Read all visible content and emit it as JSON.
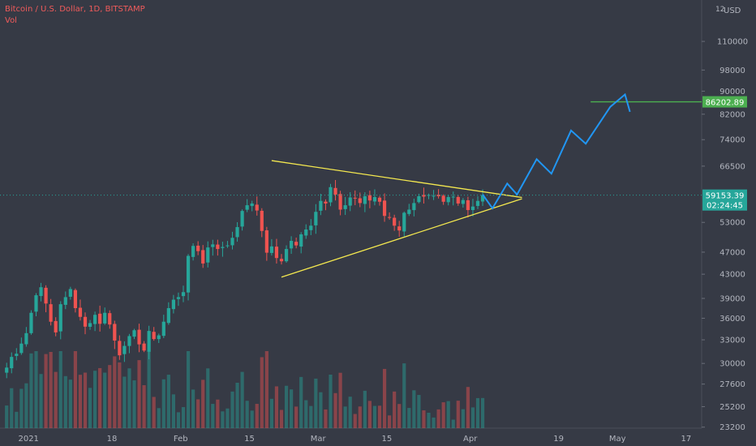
{
  "header": {
    "symbol_line": "Bitcoin / U.S. Dollar, 1D, BITSTAMP",
    "volume_label": "Vol"
  },
  "price_axis": {
    "top_label": "12",
    "currency": "USD",
    "tick_labels": [
      "110000",
      "98000",
      "90000",
      "82000",
      "74000",
      "66500",
      "53000",
      "47000",
      "43000",
      "39000",
      "36000",
      "33000",
      "30000",
      "27600",
      "25200",
      "23200"
    ]
  },
  "time_axis": {
    "tick_labels": [
      "2021",
      "18",
      "Feb",
      "15",
      "Mar",
      "15",
      "Apr",
      "19",
      "May",
      "17"
    ]
  },
  "badges": {
    "target_price": "86202.89",
    "current_price": "59153.39",
    "countdown": "02:24:45"
  },
  "colors": {
    "background": "#363a45",
    "up": "#26a69a",
    "down": "#ef5350",
    "triangle": "#f5e94f",
    "projection": "#2196f3",
    "target": "#4caf50",
    "current": "#26a69a",
    "axis_text": "#b2b5be",
    "header_text": "#f05b5b"
  },
  "chart_data": {
    "type": "candlestick",
    "interval": "1D",
    "x_start": "2021-01-01",
    "days": 98,
    "y_scale": "log",
    "ylim": [
      21500,
      130000
    ],
    "closes": [
      29500,
      30800,
      31200,
      32500,
      33900,
      36800,
      39500,
      40800,
      38200,
      35500,
      34000,
      38100,
      39200,
      40500,
      37500,
      36200,
      34800,
      35300,
      36500,
      35200,
      36800,
      35100,
      32900,
      31000,
      32200,
      33500,
      34300,
      32400,
      31600,
      34200,
      33100,
      33600,
      35500,
      37500,
      38800,
      39200,
      40000,
      46300,
      48200,
      47200,
      44900,
      47900,
      48500,
      47600,
      48000,
      48300,
      49800,
      52000,
      55500,
      56800,
      57200,
      55600,
      51200,
      46900,
      48100,
      45900,
      45300,
      47600,
      49200,
      48300,
      50500,
      51500,
      52300,
      55300,
      57800,
      57200,
      61100,
      59300,
      55800,
      56800,
      58600,
      58400,
      57300,
      58900,
      57900,
      58700,
      57600,
      54400,
      54100,
      52300,
      51300,
      55100,
      55800,
      57300,
      58900,
      58800,
      59200,
      59000,
      58900,
      57600,
      58700,
      58800,
      57200,
      58000,
      55700,
      56500,
      57800,
      59153.39
    ],
    "projection_path": [
      {
        "day": 97,
        "price": 59300
      },
      {
        "day": 99,
        "price": 56100
      },
      {
        "day": 102,
        "price": 62000
      },
      {
        "day": 104,
        "price": 59300
      },
      {
        "day": 108,
        "price": 68400
      },
      {
        "day": 111,
        "price": 64500
      },
      {
        "day": 115,
        "price": 76800
      },
      {
        "day": 118,
        "price": 72800
      },
      {
        "day": 123,
        "price": 84500
      },
      {
        "day": 126,
        "price": 88800
      },
      {
        "day": 127,
        "price": 82800
      }
    ],
    "triangle_upper": [
      {
        "day": 54,
        "price": 68000
      },
      {
        "day": 105,
        "price": 58600
      }
    ],
    "triangle_lower": [
      {
        "day": 56,
        "price": 42500
      },
      {
        "day": 105,
        "price": 58300
      }
    ],
    "target_price": 86202.89,
    "current_price": 59153.39
  }
}
